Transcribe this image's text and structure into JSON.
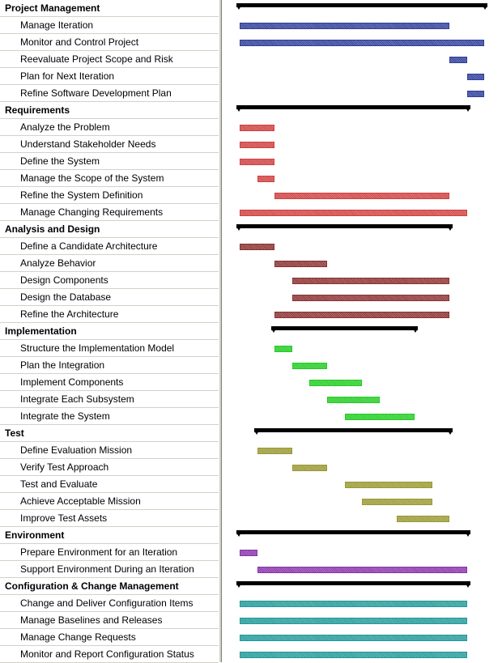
{
  "groups": [
    {
      "name": "Project Management",
      "start": 0,
      "end": 14,
      "color": "#2e3e9a",
      "tasks": [
        {
          "name": "Manage Iteration",
          "start": 0,
          "end": 12
        },
        {
          "name": "Monitor and Control Project",
          "start": 0,
          "end": 14
        },
        {
          "name": "Reevaluate Project Scope and Risk",
          "start": 12,
          "end": 13
        },
        {
          "name": "Plan for Next Iteration",
          "start": 13,
          "end": 14
        },
        {
          "name": "Refine Software Development Plan",
          "start": 13,
          "end": 14
        }
      ]
    },
    {
      "name": "Requirements",
      "start": 0,
      "end": 13,
      "color": "#d04040",
      "tasks": [
        {
          "name": "Analyze the Problem",
          "start": 0,
          "end": 2
        },
        {
          "name": "Understand Stakeholder Needs",
          "start": 0,
          "end": 2
        },
        {
          "name": "Define the System",
          "start": 0,
          "end": 2
        },
        {
          "name": "Manage the Scope of the System",
          "start": 1,
          "end": 2
        },
        {
          "name": "Refine the System Definition",
          "start": 2,
          "end": 12
        },
        {
          "name": "Manage Changing Requirements",
          "start": 0,
          "end": 13
        }
      ]
    },
    {
      "name": "Analysis and Design",
      "start": 0,
      "end": 12,
      "color": "#8a3030",
      "tasks": [
        {
          "name": "Define a Candidate Architecture",
          "start": 0,
          "end": 2
        },
        {
          "name": "Analyze Behavior",
          "start": 2,
          "end": 5
        },
        {
          "name": "Design Components",
          "start": 3,
          "end": 12
        },
        {
          "name": "Design the Database",
          "start": 3,
          "end": 12
        },
        {
          "name": "Refine the Architecture",
          "start": 2,
          "end": 12
        }
      ]
    },
    {
      "name": "Implementation",
      "start": 2,
      "end": 10,
      "color": "#22cc22",
      "tasks": [
        {
          "name": "Structure the Implementation Model",
          "start": 2,
          "end": 3
        },
        {
          "name": "Plan the Integration",
          "start": 3,
          "end": 5
        },
        {
          "name": "Implement Components",
          "start": 4,
          "end": 7
        },
        {
          "name": "Integrate Each Subsystem",
          "start": 5,
          "end": 8
        },
        {
          "name": "Integrate the System",
          "start": 6,
          "end": 10
        }
      ]
    },
    {
      "name": "Test",
      "start": 1,
      "end": 12,
      "color": "#999933",
      "tasks": [
        {
          "name": "Define Evaluation Mission",
          "start": 1,
          "end": 3
        },
        {
          "name": "Verify Test Approach",
          "start": 3,
          "end": 5
        },
        {
          "name": "Test and Evaluate",
          "start": 6,
          "end": 11
        },
        {
          "name": "Achieve Acceptable Mission",
          "start": 7,
          "end": 11
        },
        {
          "name": "Improve Test Assets",
          "start": 9,
          "end": 12
        }
      ]
    },
    {
      "name": "Environment",
      "start": 0,
      "end": 13,
      "color": "#8833aa",
      "tasks": [
        {
          "name": "Prepare Environment for an Iteration",
          "start": 0,
          "end": 1
        },
        {
          "name": "Support Environment During an Iteration",
          "start": 1,
          "end": 13
        }
      ]
    },
    {
      "name": "Configuration & Change Management",
      "start": 0,
      "end": 13,
      "color": "#229999",
      "tasks": [
        {
          "name": "Change and Deliver Configuration Items",
          "start": 0,
          "end": 13
        },
        {
          "name": "Manage Baselines and Releases",
          "start": 0,
          "end": 13
        },
        {
          "name": "Manage Change Requests",
          "start": 0,
          "end": 13
        },
        {
          "name": "Monitor and Report Configuration Status",
          "start": 0,
          "end": 13
        }
      ]
    }
  ]
}
